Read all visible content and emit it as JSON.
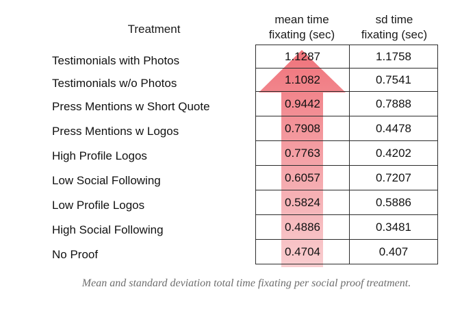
{
  "headers": {
    "treatment": "Treatment",
    "mean_line1": "mean time",
    "mean_line2": "fixating (sec)",
    "sd_line1": "sd time",
    "sd_line2": "fixating (sec)"
  },
  "rows": [
    {
      "label": "Testimonials with Photos",
      "mean": "1.1287",
      "sd": "1.1758"
    },
    {
      "label": "Testimonials w/o Photos",
      "mean": "1.1082",
      "sd": "0.7541"
    },
    {
      "label": "Press Mentions w Short Quote",
      "mean": "0.9442",
      "sd": "0.7888"
    },
    {
      "label": "Press Mentions w Logos",
      "mean": "0.7908",
      "sd": "0.4478"
    },
    {
      "label": "High Profile Logos",
      "mean": "0.7763",
      "sd": "0.4202"
    },
    {
      "label": "Low Social Following",
      "mean": "0.6057",
      "sd": "0.7207"
    },
    {
      "label": "Low Profile Logos",
      "mean": "0.5824",
      "sd": "0.5886"
    },
    {
      "label": "High Social Following",
      "mean": "0.4886",
      "sd": "0.3481"
    },
    {
      "label": "No Proof",
      "mean": "0.4704",
      "sd": "0.407"
    }
  ],
  "caption": "Mean and standard deviation total time fixating per social proof treatment.",
  "colors": {
    "arrow_top": "#ef6b73",
    "arrow_bottom": "#f7c3c6"
  }
}
